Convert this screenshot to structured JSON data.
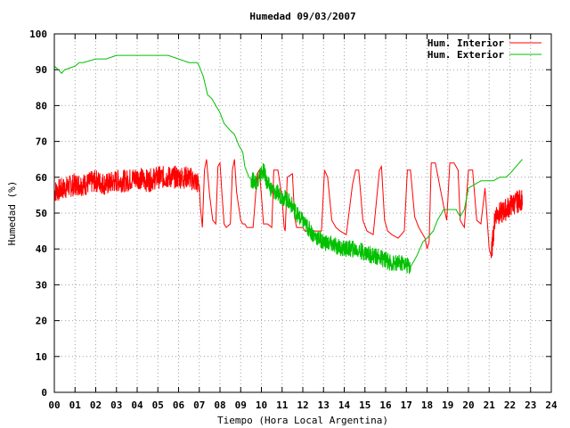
{
  "chart_data": {
    "type": "line",
    "title": "Humedad 09/03/2007",
    "xlabel": "Tiempo (Hora Local Argentina)",
    "ylabel": "Humedad (%)",
    "xlim": [
      0,
      24
    ],
    "ylim": [
      0,
      100
    ],
    "x_ticks": [
      "00",
      "01",
      "02",
      "03",
      "04",
      "05",
      "06",
      "07",
      "08",
      "09",
      "10",
      "11",
      "12",
      "13",
      "14",
      "15",
      "16",
      "17",
      "18",
      "19",
      "20",
      "21",
      "22",
      "23",
      "24"
    ],
    "y_ticks": [
      "0",
      "10",
      "20",
      "30",
      "40",
      "50",
      "60",
      "70",
      "80",
      "90",
      "100"
    ],
    "grid": true,
    "legend_position": "top-right",
    "series": [
      {
        "name": "Hum. Interior",
        "color": "#ff0000",
        "noisy_until": 7.0,
        "noisy_from": 21.1,
        "x": [
          0,
          0.5,
          1.0,
          1.5,
          2.0,
          2.5,
          3.0,
          3.5,
          4.0,
          4.5,
          5.0,
          5.5,
          6.0,
          6.5,
          7.0,
          7.05,
          7.15,
          7.25,
          7.35,
          7.5,
          7.65,
          7.8,
          7.9,
          8.0,
          8.1,
          8.2,
          8.3,
          8.5,
          8.6,
          8.7,
          8.8,
          9.0,
          9.1,
          9.2,
          9.3,
          9.6,
          9.8,
          9.9,
          10.0,
          10.1,
          10.3,
          10.5,
          10.6,
          10.8,
          11.0,
          11.1,
          11.15,
          11.25,
          11.5,
          11.6,
          11.7,
          12.0,
          12.1,
          12.3,
          12.6,
          12.9,
          13.05,
          13.2,
          13.4,
          13.6,
          13.8,
          14.1,
          14.4,
          14.55,
          14.7,
          14.9,
          15.1,
          15.4,
          15.7,
          15.8,
          15.95,
          16.1,
          16.3,
          16.6,
          16.9,
          17.05,
          17.2,
          17.4,
          17.6,
          17.7,
          17.9,
          18.0,
          18.1,
          18.2,
          18.4,
          18.8,
          18.95,
          19.1,
          19.3,
          19.5,
          19.6,
          19.8,
          20.0,
          20.2,
          20.4,
          20.6,
          20.8,
          21.0,
          21.1,
          21.3,
          21.6,
          22.0,
          22.3,
          22.6
        ],
        "values": [
          56,
          57,
          58,
          58,
          59,
          58,
          59,
          59,
          60,
          59,
          60,
          60,
          60,
          60,
          58,
          52,
          46,
          62,
          65,
          55,
          48,
          47,
          63,
          64,
          55,
          47,
          46,
          47,
          62,
          65,
          56,
          48,
          47,
          47,
          46,
          46,
          61,
          62,
          55,
          47,
          47,
          46,
          62,
          62,
          54,
          46,
          45,
          60,
          61,
          49,
          46,
          46,
          45,
          45,
          45,
          45,
          62,
          60,
          48,
          46,
          45,
          44,
          58,
          62,
          62,
          48,
          45,
          44,
          62,
          63,
          48,
          45,
          44,
          43,
          45,
          62,
          62,
          49,
          46,
          45,
          43,
          40,
          42,
          64,
          64,
          52,
          48,
          64,
          64,
          62,
          48,
          46,
          62,
          62,
          48,
          47,
          57,
          40,
          38,
          50,
          50,
          52,
          53,
          54
        ]
      },
      {
        "name": "Hum. Exterior",
        "color": "#00c000",
        "noisy_from": 9.5,
        "noisy_until": 17.2,
        "x": [
          0,
          0.2,
          0.35,
          0.5,
          1.0,
          1.2,
          1.4,
          2.0,
          2.5,
          3.0,
          4.0,
          5.0,
          5.5,
          6.0,
          6.5,
          6.9,
          7.0,
          7.2,
          7.4,
          7.6,
          8.0,
          8.2,
          8.5,
          8.7,
          8.9,
          9.1,
          9.2,
          9.4,
          9.6,
          9.8,
          10.1,
          10.3,
          10.6,
          10.9,
          11.2,
          11.5,
          11.8,
          12.1,
          12.5,
          13.0,
          13.5,
          14.0,
          14.5,
          15.0,
          15.5,
          16.0,
          16.3,
          16.6,
          16.9,
          17.2,
          17.5,
          17.8,
          18.0,
          18.3,
          18.5,
          18.8,
          19.1,
          19.4,
          19.6,
          19.8,
          20.0,
          20.3,
          20.6,
          20.9,
          21.2,
          21.5,
          21.8,
          22.0,
          22.3,
          22.6
        ],
        "values": [
          91,
          90,
          89,
          90,
          91,
          92,
          92,
          93,
          93,
          94,
          94,
          94,
          94,
          93,
          92,
          92,
          91,
          88,
          83,
          82,
          78,
          75,
          73,
          72,
          69,
          67,
          63,
          60,
          59,
          59,
          62,
          58,
          56,
          55,
          54,
          52,
          49,
          47,
          44,
          42,
          41,
          40,
          40,
          39,
          38,
          37,
          36,
          36,
          36,
          35,
          38,
          42,
          43,
          45,
          48,
          51,
          51,
          51,
          49,
          51,
          57,
          58,
          59,
          59,
          59,
          60,
          60,
          61,
          63,
          65
        ]
      }
    ]
  }
}
